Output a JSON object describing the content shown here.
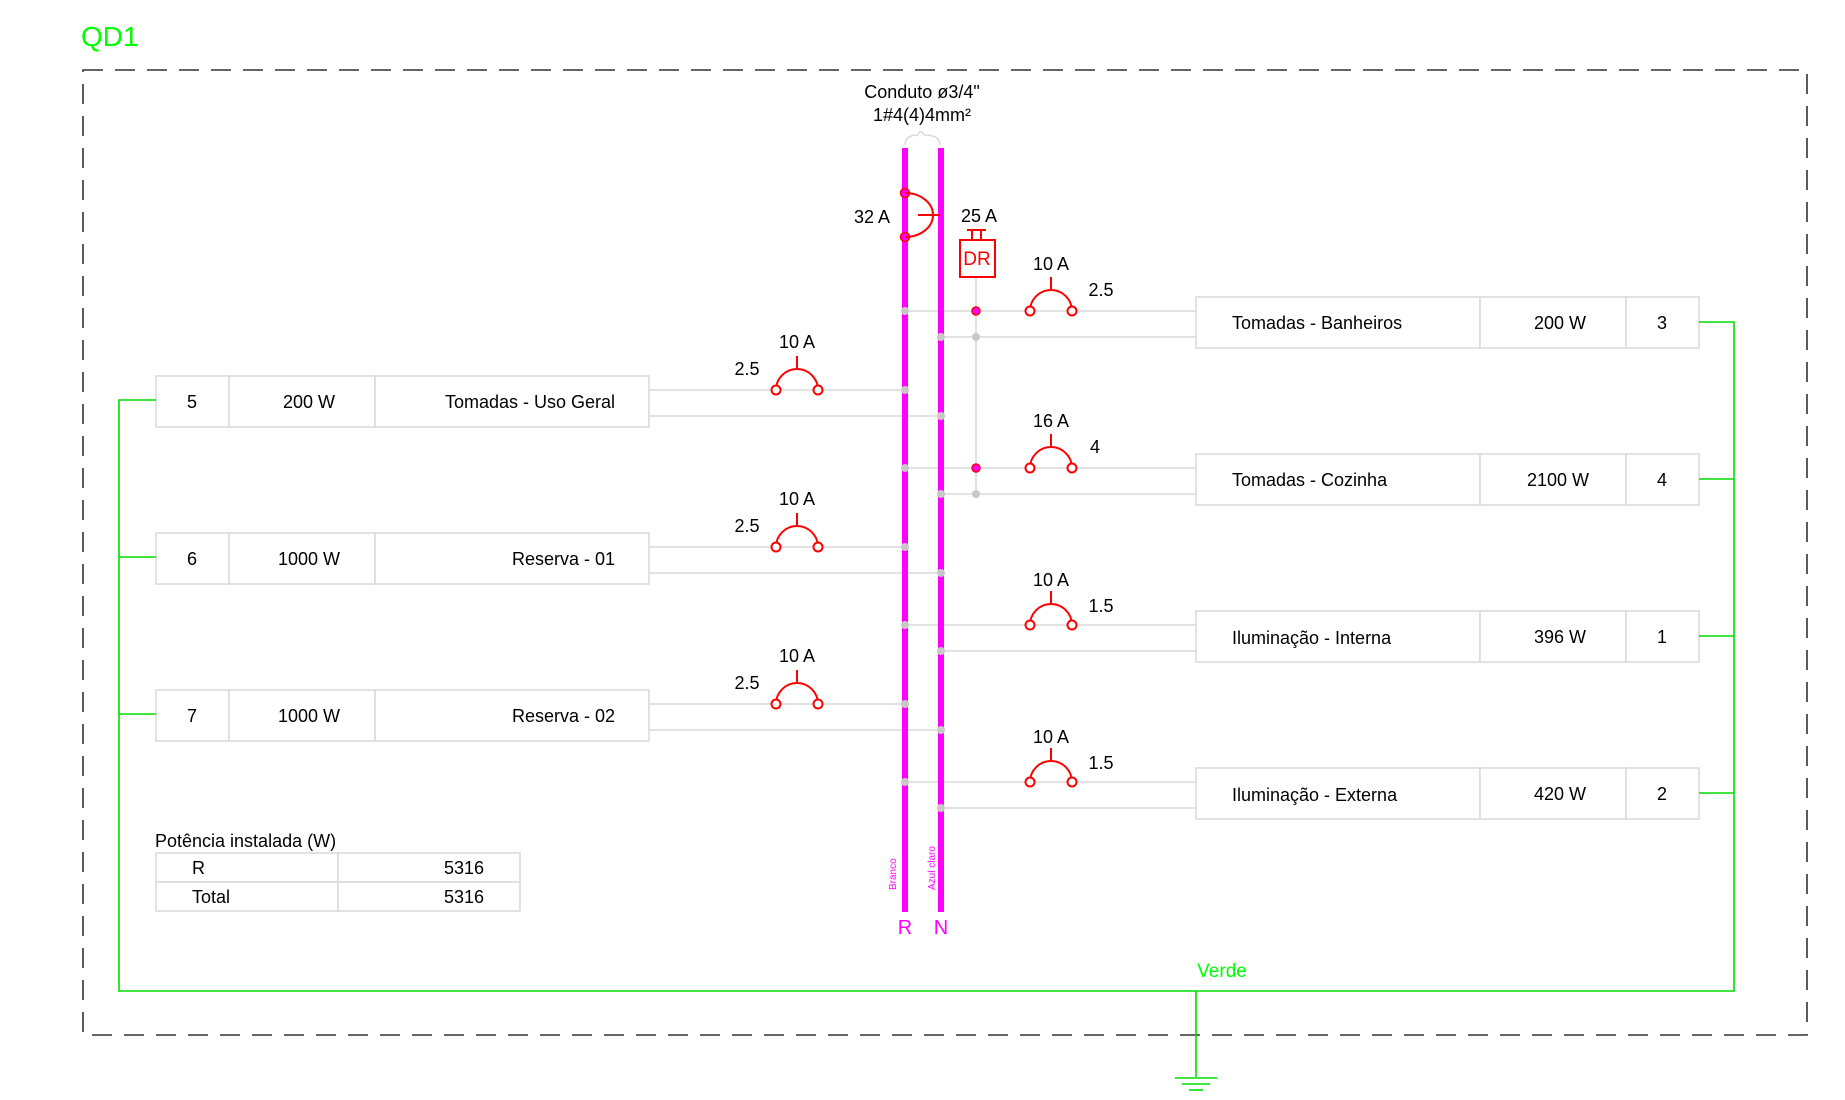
{
  "panel": {
    "title": "QD1",
    "conduit_line1": "Conduto ø3/4\"",
    "conduit_line2": "1#4(4)4mm²",
    "main_breaker": "32 A",
    "dr_rating": "25 A",
    "dr_label": "DR",
    "bus_phase_label": "R",
    "bus_neutral_label": "N",
    "bus_phase_color_name": "Branco",
    "bus_neutral_color_name": "Azul claro",
    "ground_label": "Verde"
  },
  "left_circuits": [
    {
      "num": "5",
      "power": "200 W",
      "name": "Tomadas - Uso Geral",
      "breaker": "10 A",
      "section": "2.5"
    },
    {
      "num": "6",
      "power": "1000 W",
      "name": "Reserva - 01",
      "breaker": "10 A",
      "section": "2.5"
    },
    {
      "num": "7",
      "power": "1000 W",
      "name": "Reserva - 02",
      "breaker": "10 A",
      "section": "2.5"
    }
  ],
  "right_circuits": [
    {
      "num": "3",
      "power": "200 W",
      "name": "Tomadas - Banheiros",
      "breaker": "10 A",
      "section": "2.5"
    },
    {
      "num": "4",
      "power": "2100 W",
      "name": "Tomadas - Cozinha",
      "breaker": "16 A",
      "section": "4"
    },
    {
      "num": "1",
      "power": "396 W",
      "name": "Iluminação - Interna",
      "breaker": "10 A",
      "section": "1.5"
    },
    {
      "num": "2",
      "power": "420 W",
      "name": "Iluminação - Externa",
      "breaker": "10 A",
      "section": "1.5"
    }
  ],
  "power_table": {
    "title": "Potência instalada (W)",
    "rows": [
      {
        "label": "R",
        "value": "5316"
      },
      {
        "label": "Total",
        "value": "5316"
      }
    ]
  },
  "colors": {
    "phase_bus": "#ff00ff",
    "breaker": "#ff0000",
    "ground": "#00ff00",
    "wire": "#d9d9d9",
    "frame": "#333333"
  }
}
